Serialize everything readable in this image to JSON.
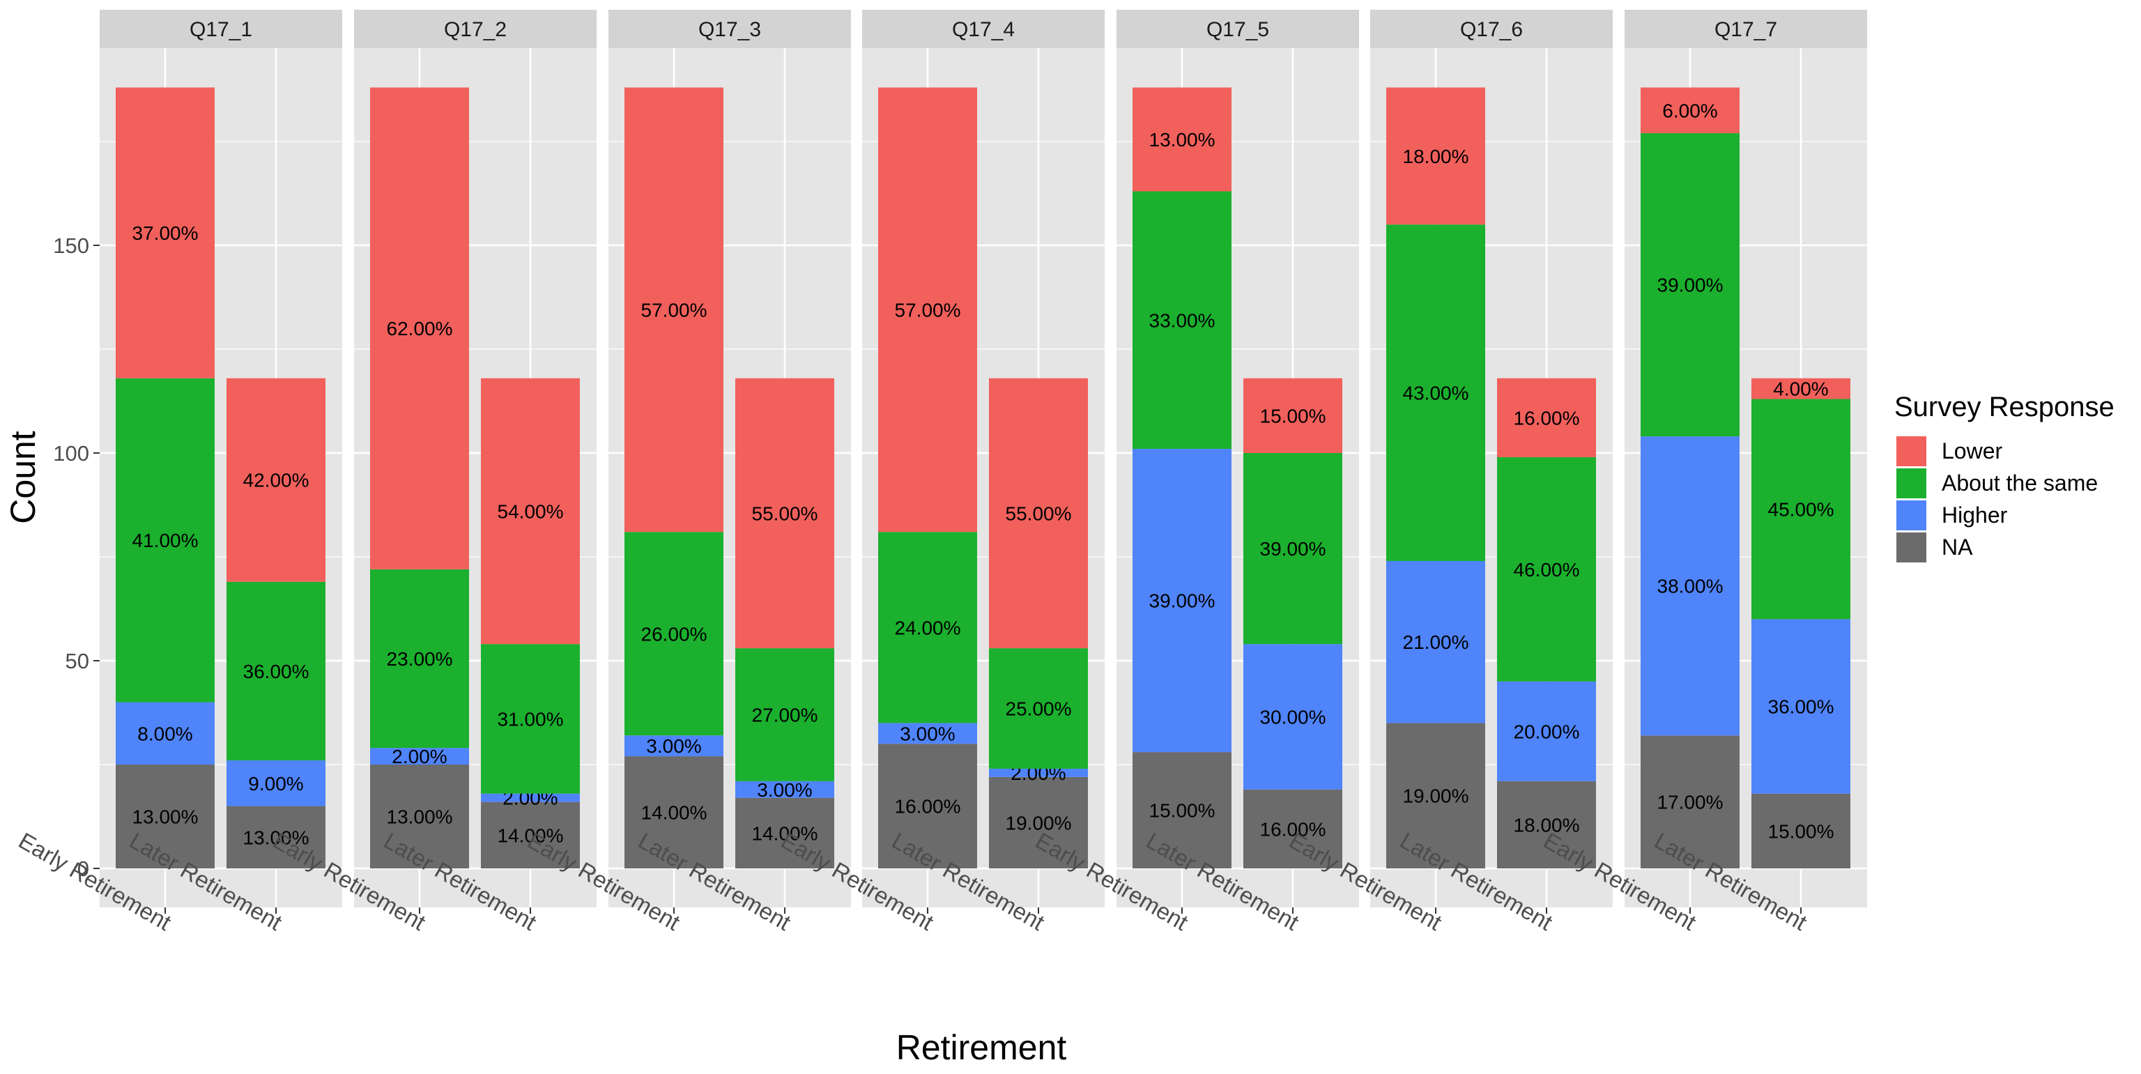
{
  "chart_data": {
    "type": "bar",
    "stacked": true,
    "facet_by": "panel",
    "panels": [
      "Q17_1",
      "Q17_2",
      "Q17_3",
      "Q17_4",
      "Q17_5",
      "Q17_6",
      "Q17_7"
    ],
    "categories": [
      "Early Retirement",
      "Later Retirement"
    ],
    "xlabel": "Retirement",
    "ylabel": "Count",
    "ylim": [
      -9,
      198
    ],
    "yticks": [
      0,
      50,
      100,
      150
    ],
    "grid": true,
    "legend": {
      "title": "Survey Response",
      "placement": "right",
      "entries": [
        "Lower",
        "About the same",
        "Higher",
        "NA"
      ]
    },
    "colors": {
      "Lower": "#F2605C",
      "About the same": "#1BB02E",
      "Higher": "#4F84FB",
      "NA": "#6B6B6B",
      "panel_bg": "#E5E5E5",
      "strip_bg": "#D3D3D3",
      "grid": "#FFFFFF"
    },
    "stack_order": [
      "NA",
      "Higher",
      "About the same",
      "Lower"
    ],
    "bars": [
      [
        {
          "NA": 25,
          "Higher": 15,
          "About the same": 78,
          "Lower": 70,
          "labels": {
            "NA": "13.00%",
            "Higher": "8.00%",
            "About the same": "41.00%",
            "Lower": "37.00%"
          }
        },
        {
          "NA": 15,
          "Higher": 11,
          "About the same": 43,
          "Lower": 49,
          "labels": {
            "NA": "13.00%",
            "Higher": "9.00%",
            "About the same": "36.00%",
            "Lower": "42.00%"
          }
        }
      ],
      [
        {
          "NA": 25,
          "Higher": 4,
          "About the same": 43,
          "Lower": 116,
          "labels": {
            "NA": "13.00%",
            "Higher": "2.00%",
            "About the same": "23.00%",
            "Lower": "62.00%"
          }
        },
        {
          "NA": 16,
          "Higher": 2,
          "About the same": 36,
          "Lower": 64,
          "labels": {
            "NA": "14.00%",
            "Higher": "2.00%",
            "About the same": "31.00%",
            "Lower": "54.00%"
          }
        }
      ],
      [
        {
          "NA": 27,
          "Higher": 5,
          "About the same": 49,
          "Lower": 107,
          "labels": {
            "NA": "14.00%",
            "Higher": "3.00%",
            "About the same": "26.00%",
            "Lower": "57.00%"
          }
        },
        {
          "NA": 17,
          "Higher": 4,
          "About the same": 32,
          "Lower": 65,
          "labels": {
            "NA": "14.00%",
            "Higher": "3.00%",
            "About the same": "27.00%",
            "Lower": "55.00%"
          }
        }
      ],
      [
        {
          "NA": 30,
          "Higher": 5,
          "About the same": 46,
          "Lower": 107,
          "labels": {
            "NA": "16.00%",
            "Higher": "3.00%",
            "About the same": "24.00%",
            "Lower": "57.00%"
          }
        },
        {
          "NA": 22,
          "Higher": 2,
          "About the same": 29,
          "Lower": 65,
          "labels": {
            "NA": "19.00%",
            "Higher": "2.00%",
            "About the same": "25.00%",
            "Lower": "55.00%"
          }
        }
      ],
      [
        {
          "NA": 28,
          "Higher": 73,
          "About the same": 62,
          "Lower": 25,
          "labels": {
            "NA": "15.00%",
            "Higher": "39.00%",
            "About the same": "33.00%",
            "Lower": "13.00%"
          }
        },
        {
          "NA": 19,
          "Higher": 35,
          "About the same": 46,
          "Lower": 18,
          "labels": {
            "NA": "16.00%",
            "Higher": "30.00%",
            "About the same": "39.00%",
            "Lower": "15.00%"
          }
        }
      ],
      [
        {
          "NA": 35,
          "Higher": 39,
          "About the same": 81,
          "Lower": 33,
          "labels": {
            "NA": "19.00%",
            "Higher": "21.00%",
            "About the same": "43.00%",
            "Lower": "18.00%"
          }
        },
        {
          "NA": 21,
          "Higher": 24,
          "About the same": 54,
          "Lower": 19,
          "labels": {
            "NA": "18.00%",
            "Higher": "20.00%",
            "About the same": "46.00%",
            "Lower": "16.00%"
          }
        }
      ],
      [
        {
          "NA": 32,
          "Higher": 72,
          "About the same": 73,
          "Lower": 11,
          "labels": {
            "NA": "17.00%",
            "Higher": "38.00%",
            "About the same": "39.00%",
            "Lower": "6.00%"
          }
        },
        {
          "NA": 18,
          "Higher": 42,
          "About the same": 53,
          "Lower": 5,
          "labels": {
            "NA": "15.00%",
            "Higher": "36.00%",
            "About the same": "45.00%",
            "Lower": "4.00%"
          }
        }
      ]
    ]
  }
}
